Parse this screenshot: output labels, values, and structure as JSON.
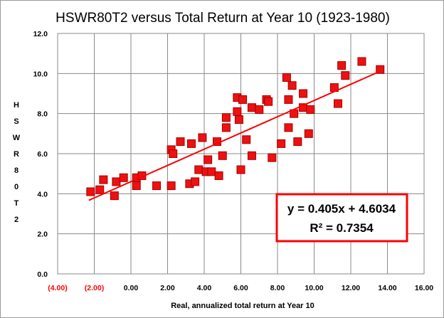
{
  "chart_data": {
    "type": "scatter",
    "title": "HSWR80T2 versus Total Return at Year 10 (1923-1980)",
    "xlabel": "Real, annualized  total return at Year 10",
    "ylabel": "HSWR80T2",
    "xlim": [
      -4,
      16
    ],
    "ylim": [
      0,
      12
    ],
    "x_ticks": [
      "(4.00)",
      "(2.00)",
      "0.00",
      "2.00",
      "4.00",
      "6.00",
      "8.00",
      "10.00",
      "12.00",
      "14.00",
      "16.00"
    ],
    "y_ticks": [
      "0.0",
      "2.0",
      "4.0",
      "6.0",
      "8.0",
      "10.0",
      "12.0"
    ],
    "negative_tick_color": "#ff0000",
    "grid": true,
    "marker_color": "#ee1111",
    "series": [
      {
        "points": [
          [
            -2.2,
            4.1
          ],
          [
            -1.7,
            4.2
          ],
          [
            -1.5,
            4.7
          ],
          [
            -0.9,
            3.9
          ],
          [
            -0.8,
            4.6
          ],
          [
            -0.4,
            4.8
          ],
          [
            0.3,
            4.4
          ],
          [
            0.3,
            4.8
          ],
          [
            0.6,
            4.9
          ],
          [
            1.4,
            4.4
          ],
          [
            2.2,
            4.4
          ],
          [
            2.2,
            6.2
          ],
          [
            2.3,
            6.0
          ],
          [
            2.7,
            6.6
          ],
          [
            3.2,
            4.5
          ],
          [
            3.3,
            6.5
          ],
          [
            3.5,
            4.6
          ],
          [
            3.7,
            5.2
          ],
          [
            3.9,
            6.8
          ],
          [
            4.1,
            5.1
          ],
          [
            4.2,
            5.7
          ],
          [
            4.4,
            5.1
          ],
          [
            4.7,
            6.6
          ],
          [
            4.8,
            4.9
          ],
          [
            5.0,
            5.9
          ],
          [
            5.2,
            7.3
          ],
          [
            5.2,
            7.8
          ],
          [
            5.8,
            8.8
          ],
          [
            5.8,
            8.1
          ],
          [
            5.9,
            7.7
          ],
          [
            6.0,
            5.2
          ],
          [
            6.1,
            8.7
          ],
          [
            6.3,
            6.7
          ],
          [
            6.6,
            5.9
          ],
          [
            6.6,
            8.3
          ],
          [
            7.0,
            8.2
          ],
          [
            7.4,
            8.7
          ],
          [
            7.5,
            8.6
          ],
          [
            7.7,
            5.8
          ],
          [
            8.2,
            6.5
          ],
          [
            8.5,
            9.8
          ],
          [
            8.6,
            7.3
          ],
          [
            8.6,
            8.7
          ],
          [
            8.8,
            9.4
          ],
          [
            8.9,
            8.0
          ],
          [
            9.1,
            6.6
          ],
          [
            9.4,
            9.0
          ],
          [
            9.4,
            8.3
          ],
          [
            9.7,
            7.0
          ],
          [
            9.8,
            8.2
          ],
          [
            11.1,
            9.3
          ],
          [
            11.3,
            8.5
          ],
          [
            11.5,
            10.4
          ],
          [
            11.7,
            9.9
          ],
          [
            12.6,
            10.6
          ],
          [
            13.6,
            10.2
          ]
        ]
      }
    ],
    "trendline": {
      "slope": 0.405,
      "intercept": 4.6034,
      "x_range": [
        -2.3,
        13.6
      ],
      "color": "#ff0000"
    },
    "annotations": {
      "equation": "y = 0.405x + 4.6034",
      "r_squared": "R² = 0.7354",
      "box_color": "#ff0000"
    }
  }
}
